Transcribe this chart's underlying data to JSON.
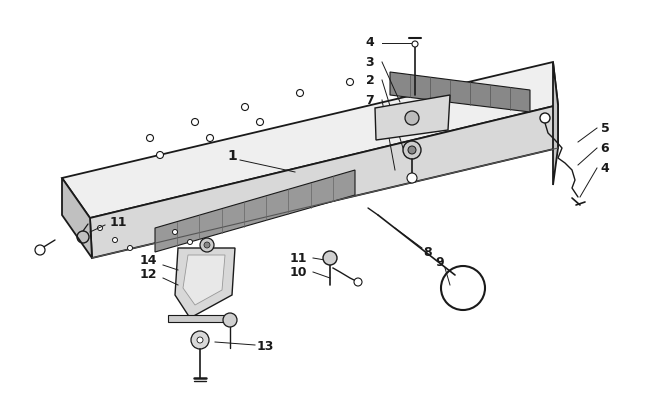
{
  "bg_color": "#ffffff",
  "line_color": "#1a1a1a",
  "label_color": "#1a1a1a",
  "figsize": [
    6.5,
    4.2
  ],
  "dpi": 100
}
